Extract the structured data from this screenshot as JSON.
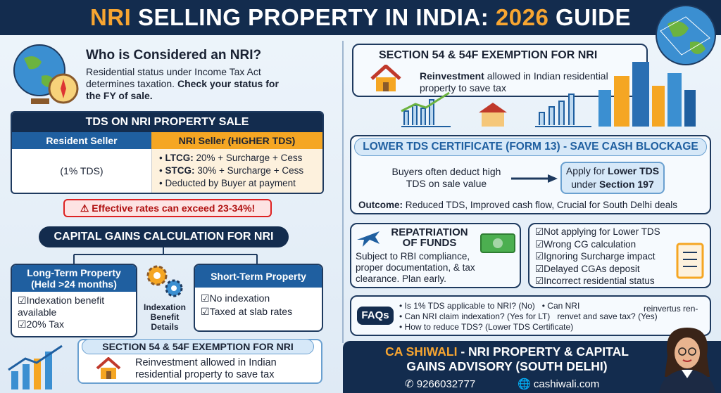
{
  "header": {
    "title_part1": "NRI",
    "title_part2": "SELLING PROPERTY IN INDIA:",
    "title_part3": "2026",
    "title_part4": "GUIDE"
  },
  "nri_definition": {
    "title": "Who is Considered an NRI?",
    "text": "Residential status under Income Tax Act determines taxation.",
    "text_bold": "Check your status for the FY of sale."
  },
  "tds": {
    "title": "TDS ON NRI PROPERTY SALE",
    "resident_header": "Resident Seller",
    "nri_header": "NRI Seller (HIGHER TDS)",
    "resident_value": "(1% TDS)",
    "nri_items": [
      {
        "bold": "LTCG:",
        "text": "20% + Surcharge + Cess"
      },
      {
        "bold": "STCG:",
        "text": "30% + Surcharge + Cess"
      },
      {
        "text": "Deducted by Buyer at payment"
      }
    ],
    "warning": "Effective rates can exceed 23-34%!"
  },
  "capital_gains": {
    "title": "CAPITAL GAINS CALCULATION FOR NRI",
    "long_term": {
      "title": "Long-Term Property (Held >24 months)",
      "items": [
        "Indexation benefit available",
        "20% Tax"
      ]
    },
    "indexation_label": "Indexation Benefit Details",
    "short_term": {
      "title": "Short-Term Property",
      "items": [
        "No indexation",
        "Taxed at slab rates"
      ]
    }
  },
  "section54_bottom": {
    "title": "SECTION 54 & 54F EXEMPTION FOR NRI",
    "text": "Reinvestment allowed in Indian residential property to save tax"
  },
  "section54_top": {
    "title": "SECTION 54 & 54F EXEMPTION FOR NRI",
    "bold": "Reinvestment",
    "text": "allowed in Indian residential property to save tax"
  },
  "form13": {
    "title": "LOWER TDS CERTIFICATE (FORM 13) - SAVE CASH BLOCKAGE",
    "left": "Buyers often deduct high TDS on sale value",
    "right_text": "Apply for",
    "right_bold1": "Lower TDS",
    "right_text2": "under",
    "right_bold2": "Section 197",
    "outcome_label": "Outcome:",
    "outcome_text": "Reduced TDS, Improved cash flow, Crucial for South Delhi deals"
  },
  "repatriation": {
    "title": "REPATRIATION OF FUNDS",
    "text": "Subject to RBI compliance, proper documentation, & tax clearance. Plan early."
  },
  "mistakes": [
    "Not applying for Lower TDS",
    "Wrong CG calculation",
    "Ignoring Surcharge impact",
    "Delayed CGAs deposit",
    "Incorrect residential status"
  ],
  "faqs": {
    "title": "FAQs",
    "items": [
      "Is 1% TDS applicable to NRI? (No)",
      "Can NRI",
      "reinvertus ren-",
      "renvet and save tax? (Yes)",
      "Can NRI claim indexation? (Yes for LT)",
      "How to reduce TDS? (Lower TDS Certificate)"
    ]
  },
  "footer": {
    "name": "CA SHIWALI",
    "title": "- NRI PROPERTY & CAPITAL GAINS ADVISORY (SOUTH DELHI)",
    "phone": "9266032777",
    "website": "cashiwali.com"
  }
}
